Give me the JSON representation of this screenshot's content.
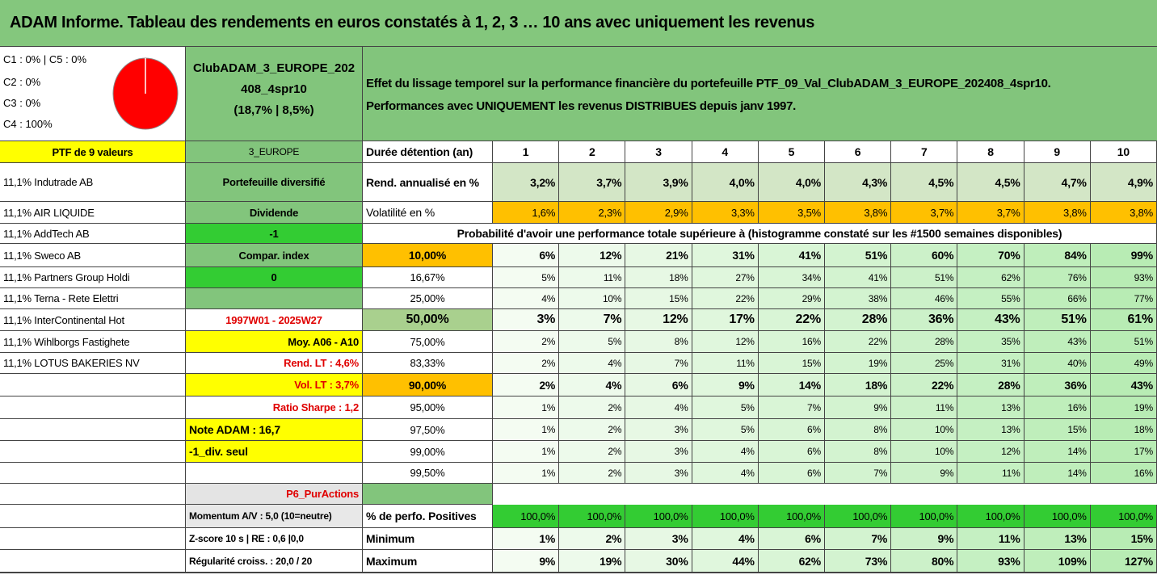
{
  "title": "ADAM Informe. Tableau des rendements en euros constatés à 1, 2, 3 … 10 ans avec uniquement les revenus",
  "composition": [
    "C1 : 0% | C5 : 0%",
    "C2 : 0%",
    "C3 : 0%",
    "C4 : 100%"
  ],
  "portfolio": {
    "name": "ClubADAM_3_EUROPE_202408_4spr10",
    "stats": "(18,7% | 8,5%)"
  },
  "description": [
    "Effet du lissage temporel sur la performance financière du portefeuille PTF_09_Val_ClubADAM_3_EUROPE_202408_4spr10.",
    "Performances avec UNIQUEMENT les revenus DISTRIBUES depuis janv 1997."
  ],
  "rows": [
    [
      "PTF de 9 valeurs",
      "3_EUROPE",
      "Durée détention (an)",
      "1",
      "2",
      "3",
      "4",
      "5",
      "6",
      "7",
      "8",
      "9",
      "10"
    ],
    [
      "11,1% Indutrade AB",
      "Portefeuille diversifié",
      "Rend. annualisé en %",
      "3,2%",
      "3,7%",
      "3,9%",
      "4,0%",
      "4,0%",
      "4,3%",
      "4,5%",
      "4,5%",
      "4,7%",
      "4,9%"
    ],
    [
      "11,1% AIR LIQUIDE",
      "Dividende",
      "Volatilité en %",
      "1,6%",
      "2,3%",
      "2,9%",
      "3,3%",
      "3,5%",
      "3,8%",
      "3,7%",
      "3,7%",
      "3,8%",
      "3,8%"
    ],
    [
      "11,1% AddTech AB",
      "-1",
      "Probabilité d'avoir une performance totale supérieure à (histogramme constaté sur les #1500 semaines disponibles)",
      null,
      null,
      null,
      null,
      null,
      null,
      null,
      null,
      null,
      null
    ],
    [
      "11,1% Sweco AB",
      "Compar. index",
      "10,00%",
      "6%",
      "12%",
      "21%",
      "31%",
      "41%",
      "51%",
      "60%",
      "70%",
      "84%",
      "99%"
    ],
    [
      "11,1% Partners Group Holdi",
      "0",
      "16,67%",
      "5%",
      "11%",
      "18%",
      "27%",
      "34%",
      "41%",
      "51%",
      "62%",
      "76%",
      "93%"
    ],
    [
      "11,1% Terna - Rete Elettri",
      null,
      "25,00%",
      "4%",
      "10%",
      "15%",
      "22%",
      "29%",
      "38%",
      "46%",
      "55%",
      "66%",
      "77%"
    ],
    [
      "11,1% InterContinental Hot",
      "1997W01 - 2025W27",
      "50,00%",
      "3%",
      "7%",
      "12%",
      "17%",
      "22%",
      "28%",
      "36%",
      "43%",
      "51%",
      "61%"
    ],
    [
      "11,1% Wihlborgs Fastighete",
      "Moy. A06 - A10",
      "75,00%",
      "2%",
      "5%",
      "8%",
      "12%",
      "16%",
      "22%",
      "28%",
      "35%",
      "43%",
      "51%"
    ],
    [
      "11,1% LOTUS BAKERIES NV",
      "Rend. LT : 4,6%",
      "83,33%",
      "2%",
      "4%",
      "7%",
      "11%",
      "15%",
      "19%",
      "25%",
      "31%",
      "40%",
      "49%"
    ],
    [
      null,
      "Vol. LT : 3,7%",
      "90,00%",
      "2%",
      "4%",
      "6%",
      "9%",
      "14%",
      "18%",
      "22%",
      "28%",
      "36%",
      "43%"
    ],
    [
      null,
      "Ratio Sharpe : 1,2",
      "95,00%",
      "1%",
      "2%",
      "4%",
      "5%",
      "7%",
      "9%",
      "11%",
      "13%",
      "16%",
      "19%"
    ],
    [
      null,
      "Note ADAM : 16,7",
      "97,50%",
      "1%",
      "2%",
      "3%",
      "5%",
      "6%",
      "8%",
      "10%",
      "13%",
      "15%",
      "18%"
    ],
    [
      null,
      "-1_div. seul",
      "99,00%",
      "1%",
      "2%",
      "3%",
      "4%",
      "6%",
      "8%",
      "10%",
      "12%",
      "14%",
      "17%"
    ],
    [
      null,
      null,
      "99,50%",
      "1%",
      "2%",
      "3%",
      "4%",
      "6%",
      "7%",
      "9%",
      "11%",
      "14%",
      "16%"
    ],
    [
      null,
      "P6_PurActions",
      null,
      null,
      null,
      null,
      null,
      null,
      null,
      null,
      null,
      null,
      null
    ],
    [
      null,
      "Momentum A/V : 5,0 (10=neutre)",
      "% de perfo. Positives",
      "100,0%",
      "100,0%",
      "100,0%",
      "100,0%",
      "100,0%",
      "100,0%",
      "100,0%",
      "100,0%",
      "100,0%",
      "100,0%"
    ],
    [
      null,
      "Z-score 10 s | RE : 0,6 |0,0",
      "Minimum",
      "1%",
      "2%",
      "3%",
      "4%",
      "6%",
      "7%",
      "9%",
      "11%",
      "13%",
      "15%"
    ],
    [
      null,
      "Régularité croiss. : 20,0 / 20",
      "Maximum",
      "9%",
      "19%",
      "30%",
      "44%",
      "62%",
      "73%",
      "80%",
      "93%",
      "109%",
      "127%"
    ]
  ]
}
